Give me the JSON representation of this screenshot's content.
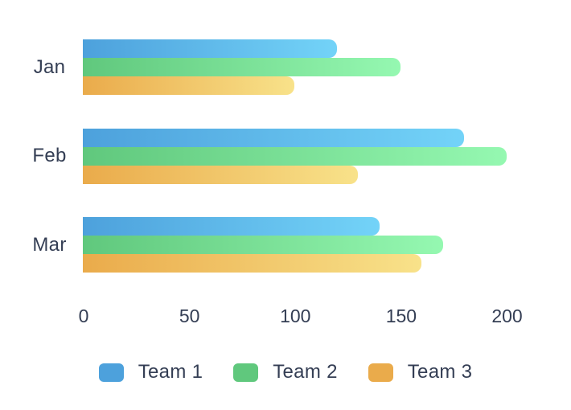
{
  "chart_data": {
    "type": "bar",
    "orientation": "horizontal",
    "title": "",
    "xlabel": "",
    "ylabel": "",
    "categories": [
      "Jan",
      "Feb",
      "Mar"
    ],
    "series": [
      {
        "name": "Team 1",
        "values": [
          120,
          180,
          140
        ],
        "color": "#4DA1DC",
        "color_light": "#73D3F8"
      },
      {
        "name": "Team 2",
        "values": [
          150,
          200,
          170
        ],
        "color": "#60C87D",
        "color_light": "#95F8B1"
      },
      {
        "name": "Team 3",
        "values": [
          100,
          130,
          160
        ],
        "color": "#EAAB4B",
        "color_light": "#F8E28A"
      }
    ],
    "xlim": [
      0,
      200
    ],
    "xticks": [
      0,
      50,
      100,
      150,
      200
    ],
    "grid": false,
    "legend_position": "bottom",
    "bar_style": "gradient-rounded-right"
  },
  "colors": {
    "text": "#343E54",
    "background": "#FFFFFF"
  }
}
